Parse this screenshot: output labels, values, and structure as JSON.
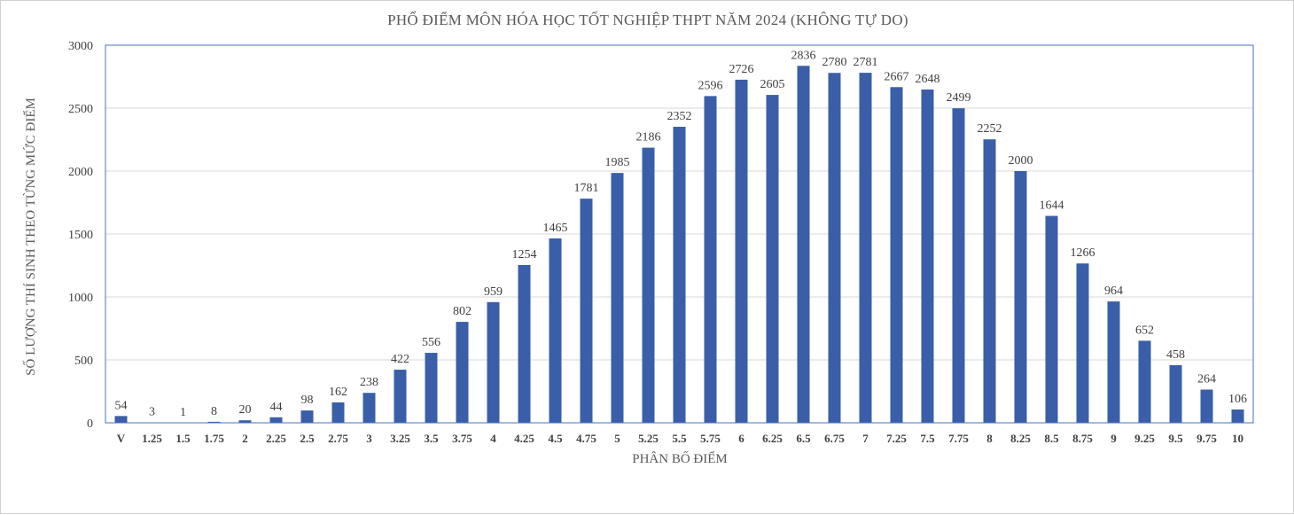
{
  "chart_data": {
    "type": "bar",
    "title": "PHỔ ĐIỂM MÔN HÓA HỌC TỐT NGHIỆP THPT NĂM 2024 (KHÔNG TỰ DO)",
    "xlabel": "PHÂN BỐ ĐIỂM",
    "ylabel": "SỐ LƯỢNG THÍ SINH THEO TỪNG MỨC ĐIỂM",
    "categories": [
      "V",
      "1.25",
      "1.5",
      "1.75",
      "2",
      "2.25",
      "2.5",
      "2.75",
      "3",
      "3.25",
      "3.5",
      "3.75",
      "4",
      "4.25",
      "4.5",
      "4.75",
      "5",
      "5.25",
      "5.5",
      "5.75",
      "6",
      "6.25",
      "6.5",
      "6.75",
      "7",
      "7.25",
      "7.5",
      "7.75",
      "8",
      "8.25",
      "8.5",
      "8.75",
      "9",
      "9.25",
      "9.5",
      "9.75",
      "10"
    ],
    "values": [
      54,
      3,
      1,
      8,
      20,
      44,
      98,
      162,
      238,
      422,
      556,
      802,
      959,
      1254,
      1465,
      1781,
      1985,
      2186,
      2352,
      2596,
      2726,
      2605,
      2836,
      2780,
      2781,
      2667,
      2648,
      2499,
      2252,
      2000,
      1644,
      1266,
      964,
      652,
      458,
      264,
      106
    ],
    "ylim": [
      0,
      3000
    ],
    "yticks": [
      0,
      500,
      1000,
      1500,
      2000,
      2500,
      3000
    ],
    "grid": true,
    "bar_color": "#3a5fa8",
    "legend": "none"
  }
}
